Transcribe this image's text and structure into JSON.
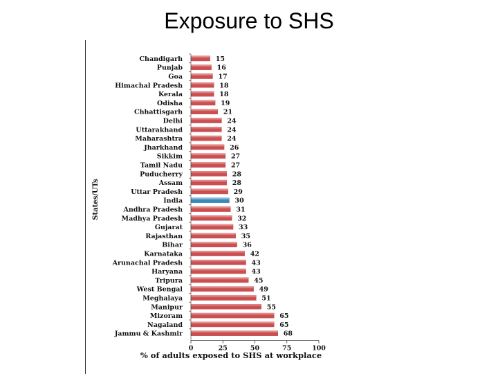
{
  "slide": {
    "title": "Exposure to SHS"
  },
  "colors": {
    "bar": "#c94f50",
    "bar_light": "#f0a8a8",
    "highlight": "#3d88b8",
    "highlight_light": "#a6d0ea",
    "axis": "#333333"
  },
  "chart_data": {
    "type": "bar",
    "orientation": "horizontal",
    "title": "",
    "xlabel": "% of adults exposed to SHS at workplace",
    "ylabel": "States/UTs",
    "xlim": [
      0,
      100
    ],
    "xticks": [
      "0",
      "25",
      "50",
      "75",
      "100"
    ],
    "highlight_category": "India",
    "categories": [
      "Chandigarh",
      "Punjab",
      "Goa",
      "Himachal Pradesh",
      "Kerala",
      "Odisha",
      "Chhattisgarh",
      "Delhi",
      "Uttarakhand",
      "Maharashtra",
      "Jharkhand",
      "Sikkim",
      "Tamil Nadu",
      "Puducherry",
      "Assam",
      "Uttar Pradesh",
      "India",
      "Andhra Pradesh",
      "Madhya Pradesh",
      "Gujarat",
      "Rajasthan",
      "Bihar",
      "Karnataka",
      "Arunachal Pradesh",
      "Haryana",
      "Tripura",
      "West Bengal",
      "Meghalaya",
      "Manipur",
      "Mizoram",
      "Nagaland",
      "Jammu & Kashmir"
    ],
    "values": [
      15,
      16,
      17,
      18,
      18,
      19,
      21,
      24,
      24,
      24,
      26,
      27,
      27,
      28,
      28,
      29,
      30,
      31,
      32,
      33,
      35,
      36,
      42,
      43,
      43,
      45,
      49,
      51,
      55,
      65,
      65,
      68
    ],
    "value_labels": [
      "15",
      "16",
      "17",
      "18",
      "18",
      "19",
      "21",
      "24",
      "24",
      "24",
      "26",
      "27",
      "27",
      "28",
      "28",
      "29",
      "30",
      "31",
      "32",
      "33",
      "35",
      "36",
      "42",
      "43",
      "43",
      "45",
      "49",
      "51",
      "55",
      "65",
      "65",
      "68"
    ]
  }
}
